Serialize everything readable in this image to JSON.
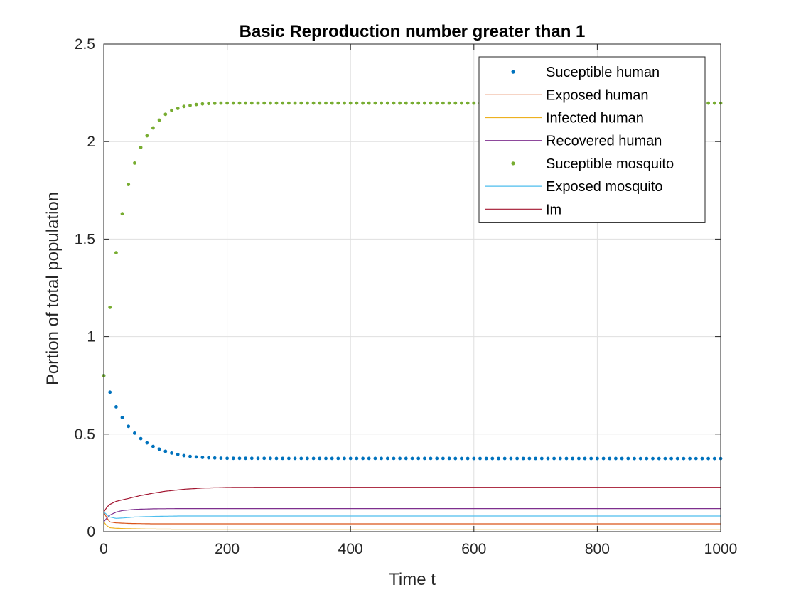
{
  "chart_data": {
    "type": "line",
    "title": "Basic Reproduction number greater than 1",
    "xlabel": "Time t",
    "ylabel": "Portion of total population",
    "xlim": [
      0,
      1000
    ],
    "ylim": [
      0,
      2.5
    ],
    "xticks": [
      0,
      200,
      400,
      600,
      800,
      1000
    ],
    "xtick_labels": [
      "0",
      "200",
      "400",
      "600",
      "800",
      "1000"
    ],
    "yticks": [
      0,
      0.5,
      1,
      1.5,
      2,
      2.5
    ],
    "ytick_labels": [
      "0",
      "0.5",
      "1",
      "1.5",
      "2",
      "2.5"
    ],
    "grid": true,
    "legend_position": "top-right",
    "series": [
      {
        "name": "Suceptible human",
        "style": "dots",
        "color": "#0072BD",
        "x": [
          0,
          10,
          20,
          30,
          40,
          50,
          60,
          70,
          80,
          90,
          100,
          110,
          120,
          130,
          140,
          150,
          160,
          170,
          180,
          190,
          200,
          1000
        ],
        "y": [
          0.8,
          0.715,
          0.64,
          0.585,
          0.54,
          0.505,
          0.477,
          0.455,
          0.437,
          0.423,
          0.412,
          0.403,
          0.396,
          0.39,
          0.386,
          0.383,
          0.381,
          0.379,
          0.378,
          0.377,
          0.376,
          0.375
        ],
        "dot_spacing": 10
      },
      {
        "name": "Exposed human",
        "style": "line",
        "color": "#D95319",
        "x": [
          0,
          5,
          10,
          20,
          40,
          80,
          150,
          1000
        ],
        "y": [
          0.1,
          0.07,
          0.05,
          0.045,
          0.042,
          0.04,
          0.04,
          0.04
        ]
      },
      {
        "name": "Infected human",
        "style": "line",
        "color": "#EDB120",
        "x": [
          0,
          5,
          10,
          20,
          40,
          80,
          150,
          1000
        ],
        "y": [
          0.05,
          0.03,
          0.02,
          0.017,
          0.015,
          0.013,
          0.012,
          0.012
        ]
      },
      {
        "name": "Recovered human",
        "style": "line",
        "color": "#7E2F8E",
        "x": [
          0,
          5,
          10,
          20,
          30,
          50,
          80,
          120,
          200,
          1000
        ],
        "y": [
          0.05,
          0.07,
          0.085,
          0.1,
          0.108,
          0.114,
          0.117,
          0.118,
          0.118,
          0.118
        ]
      },
      {
        "name": "Suceptible mosquito",
        "style": "dots",
        "color": "#77AC30",
        "x": [
          0,
          10,
          20,
          30,
          40,
          50,
          60,
          70,
          80,
          90,
          100,
          110,
          120,
          130,
          140,
          150,
          160,
          170,
          180,
          190,
          200,
          1000
        ],
        "y": [
          0.8,
          1.15,
          1.43,
          1.63,
          1.78,
          1.89,
          1.97,
          2.03,
          2.07,
          2.11,
          2.14,
          2.16,
          2.17,
          2.18,
          2.185,
          2.19,
          2.193,
          2.195,
          2.196,
          2.197,
          2.197,
          2.197
        ],
        "dot_spacing": 10
      },
      {
        "name": "Exposed mosquito",
        "style": "line",
        "color": "#4DBEEE",
        "x": [
          0,
          10,
          20,
          30,
          50,
          80,
          120,
          200,
          1000
        ],
        "y": [
          0.1,
          0.075,
          0.068,
          0.07,
          0.075,
          0.078,
          0.08,
          0.08,
          0.08
        ]
      },
      {
        "name": "Im",
        "style": "line",
        "color": "#A2142F",
        "x": [
          0,
          5,
          10,
          20,
          40,
          60,
          80,
          100,
          130,
          160,
          200,
          250,
          1000
        ],
        "y": [
          0.1,
          0.125,
          0.14,
          0.155,
          0.17,
          0.185,
          0.197,
          0.207,
          0.217,
          0.223,
          0.226,
          0.227,
          0.227
        ]
      }
    ]
  }
}
